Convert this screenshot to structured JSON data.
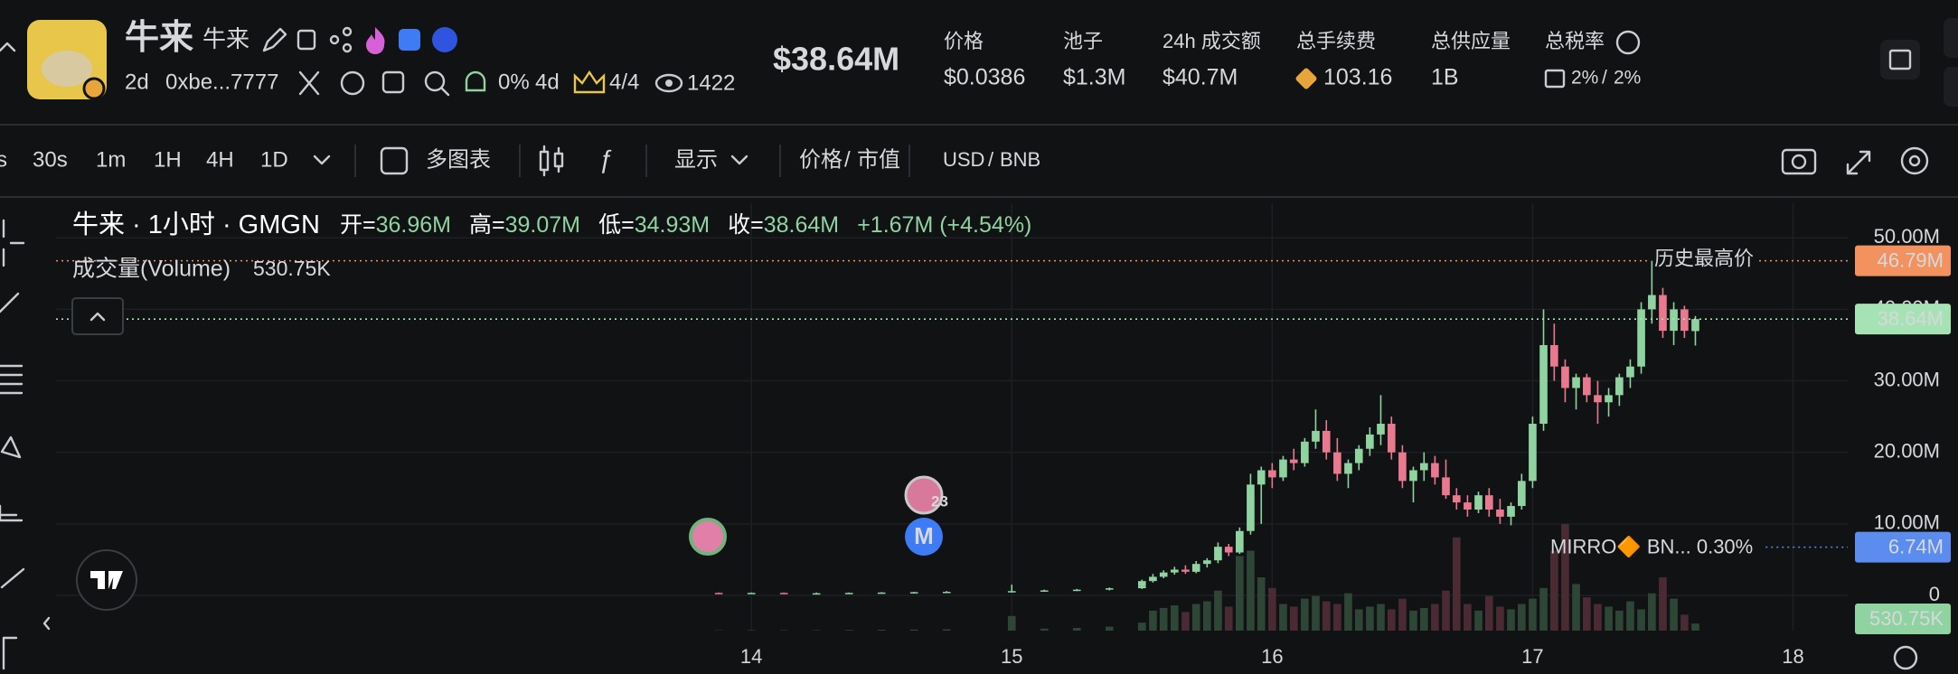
{
  "header": {
    "name": "牛来",
    "alias": "牛来",
    "age": "2d",
    "address": "0xbe...7777",
    "holder_pct": "0%",
    "holder_age": "4d",
    "rank": "4/4",
    "views": "1422",
    "market_cap": "$38.64M",
    "stats": [
      {
        "label": "价格",
        "value": "$0.0386"
      },
      {
        "label": "池子",
        "value": "$1.3M"
      },
      {
        "label": "24h 成交额",
        "value": "$40.7M"
      },
      {
        "label": "总手续费",
        "value": "103.16"
      },
      {
        "label": "总供应量",
        "value": "1B"
      },
      {
        "label": "总税率",
        "value": "2%",
        "value2": "2%"
      }
    ]
  },
  "toolbar": {
    "intervals": [
      "s",
      "30s",
      "1m",
      "1H",
      "4H",
      "1D"
    ],
    "multi_chart": "多图表",
    "display": "显示",
    "price": "价格",
    "market_cap": "市值",
    "currency": "USD",
    "base": "BNB",
    "sep": "/"
  },
  "legend": {
    "title": "牛来 · 1小时 · GMGN",
    "open_label": "开=",
    "open": "36.96M",
    "high_label": "高=",
    "high": "39.07M",
    "low_label": "低=",
    "low": "34.93M",
    "close_label": "收=",
    "close": "38.64M",
    "change": "+1.67M (+4.54%)",
    "volume_title": "成交量(Volume)"
  },
  "markers": {
    "badge": "23",
    "m": "M"
  },
  "chart_data": {
    "type": "candlestick",
    "x": [
      13.875,
      14,
      14.125,
      14.25,
      14.375,
      14.5,
      14.625,
      14.75,
      15,
      15.125,
      15.25,
      15.375,
      15.5,
      15.5,
      15.542,
      15.583,
      15.625,
      15.667,
      15.708,
      15.75,
      15.792,
      15.833,
      15.875,
      15.917,
      15.958,
      16,
      16.042,
      16.083,
      16.125,
      16.167,
      16.208,
      16.25,
      16.292,
      16.333,
      16.375,
      16.417,
      16.458,
      16.5,
      16.542,
      16.583,
      16.625,
      16.667,
      16.708,
      16.75,
      16.792,
      16.833,
      16.875,
      16.917,
      16.958,
      17,
      17.042,
      17.083,
      17.125,
      17.167,
      17.208,
      17.25,
      17.292,
      17.333,
      17.375,
      17.417,
      17.458,
      17.5,
      17.542,
      17.583,
      17.625
    ],
    "open": [
      0.35,
      0.3,
      0.35,
      0.3,
      0.3,
      0.35,
      0.4,
      0.45,
      0.5,
      0.6,
      0.7,
      0.8,
      1.0,
      1.3,
      2.0,
      2.6,
      3.2,
      3.6,
      3.3,
      4.4,
      4.9,
      6.8,
      6.0,
      9.0,
      15.5,
      17.5,
      16.5,
      19,
      18.5,
      21.5,
      23,
      20,
      17,
      18.5,
      20.5,
      22.5,
      24,
      20,
      16,
      17.5,
      18.5,
      16.5,
      14,
      13,
      12,
      14,
      12,
      11,
      12.5,
      16,
      24,
      35,
      32,
      29,
      30.5,
      28,
      27,
      28,
      30.5,
      32,
      40,
      42,
      37,
      40,
      36.96
    ],
    "high": [
      0.4,
      0.4,
      0.4,
      0.4,
      0.4,
      0.45,
      0.5,
      0.6,
      1.5,
      0.8,
      0.9,
      1.1,
      1.5,
      2.2,
      3.0,
      3.5,
      4.0,
      4.2,
      4.8,
      5.2,
      7.4,
      7.2,
      9.5,
      17,
      18,
      18.5,
      19.5,
      20.5,
      22,
      26,
      24.5,
      22,
      19,
      21,
      23.5,
      28,
      25,
      21,
      18,
      20,
      19.5,
      19,
      15,
      14,
      14.5,
      15,
      13.5,
      13,
      17,
      25,
      40,
      38,
      33,
      31,
      31,
      30,
      29,
      31,
      33,
      41,
      46.79,
      43,
      41,
      40.5,
      39.07
    ],
    "low": [
      0.3,
      0.25,
      0.3,
      0.25,
      0.25,
      0.3,
      0.35,
      0.4,
      0.4,
      0.5,
      0.6,
      0.7,
      0.9,
      1.2,
      1.8,
      2.4,
      2.9,
      3.0,
      3.1,
      3.9,
      4.5,
      5.5,
      5.8,
      8.5,
      10,
      15,
      16,
      17.5,
      18,
      20.5,
      19,
      16,
      15,
      17.5,
      19.5,
      21,
      19,
      15,
      13,
      16,
      15.5,
      13.5,
      12,
      11,
      11.5,
      11,
      10,
      9.8,
      12,
      15,
      23,
      30,
      27,
      26,
      27,
      24,
      25,
      26.5,
      29,
      31,
      38,
      36,
      35,
      36,
      34.93
    ],
    "close": [
      0.3,
      0.35,
      0.3,
      0.3,
      0.35,
      0.4,
      0.45,
      0.5,
      0.6,
      0.7,
      0.8,
      1.0,
      1.3,
      2.0,
      2.6,
      3.2,
      3.6,
      3.3,
      4.4,
      4.9,
      6.8,
      6.0,
      9.0,
      15.5,
      17.5,
      16.5,
      19,
      18.5,
      21.5,
      23,
      20,
      17,
      18.5,
      20.5,
      22.5,
      24,
      20,
      16,
      17.5,
      18.5,
      16.5,
      14,
      13,
      12,
      14,
      12,
      11,
      12.5,
      16,
      24,
      35,
      32,
      29,
      30.5,
      28,
      27,
      28,
      30.5,
      32,
      40,
      42,
      37,
      40,
      37,
      38.64
    ],
    "volume": [
      30,
      40,
      40,
      30,
      50,
      60,
      80,
      100,
      1100,
      150,
      200,
      300,
      400,
      600,
      1500,
      1700,
      1900,
      1400,
      2000,
      2200,
      3000,
      1800,
      5600,
      6000,
      4000,
      3200,
      2000,
      1800,
      2400,
      2600,
      2200,
      2000,
      2800,
      1600,
      1800,
      2000,
      1600,
      2400,
      1500,
      1700,
      2000,
      3000,
      7000,
      2000,
      1500,
      2600,
      1800,
      1600,
      2000,
      2400,
      3200,
      6000,
      8000,
      3500,
      2500,
      2000,
      1800,
      1500,
      2200,
      1600,
      2800,
      4000,
      2400,
      1200,
      530.75
    ],
    "volume_label": "530.75K",
    "up_color": "#8ed3a0",
    "down_color": "#e8798f",
    "volume_up_color": "#2e4636",
    "volume_down_color": "#4a2a33",
    "xlim": [
      11.33,
      18.21
    ],
    "xticks": [
      14,
      15,
      16,
      17,
      18
    ],
    "ylim": [
      -4.93,
      54.83
    ],
    "yticks": [
      0,
      {
        "value": 10,
        "label": "10.00M"
      },
      {
        "value": 20,
        "label": "20.00M"
      },
      {
        "value": 30,
        "label": "30.00M"
      },
      {
        "value": 40,
        "label": "40.00M"
      },
      {
        "value": 50,
        "label": "50.00M"
      }
    ],
    "grid": true,
    "price_lines": [
      {
        "value": 46.79,
        "label": "46.79M",
        "text": "历史最高价",
        "color": "#f2925f",
        "tag_text_color": "#1a1a1a"
      },
      {
        "value": 38.64,
        "label": "38.64M",
        "color": "#a6e3b4",
        "tag_text_color": "#1a1a1a"
      },
      {
        "value": 6.74,
        "label": "6.74M",
        "text": "MIRRO🔶 BN... 0.30%",
        "color": "#5b8def",
        "tag_text_color": "#ffffff"
      }
    ]
  }
}
